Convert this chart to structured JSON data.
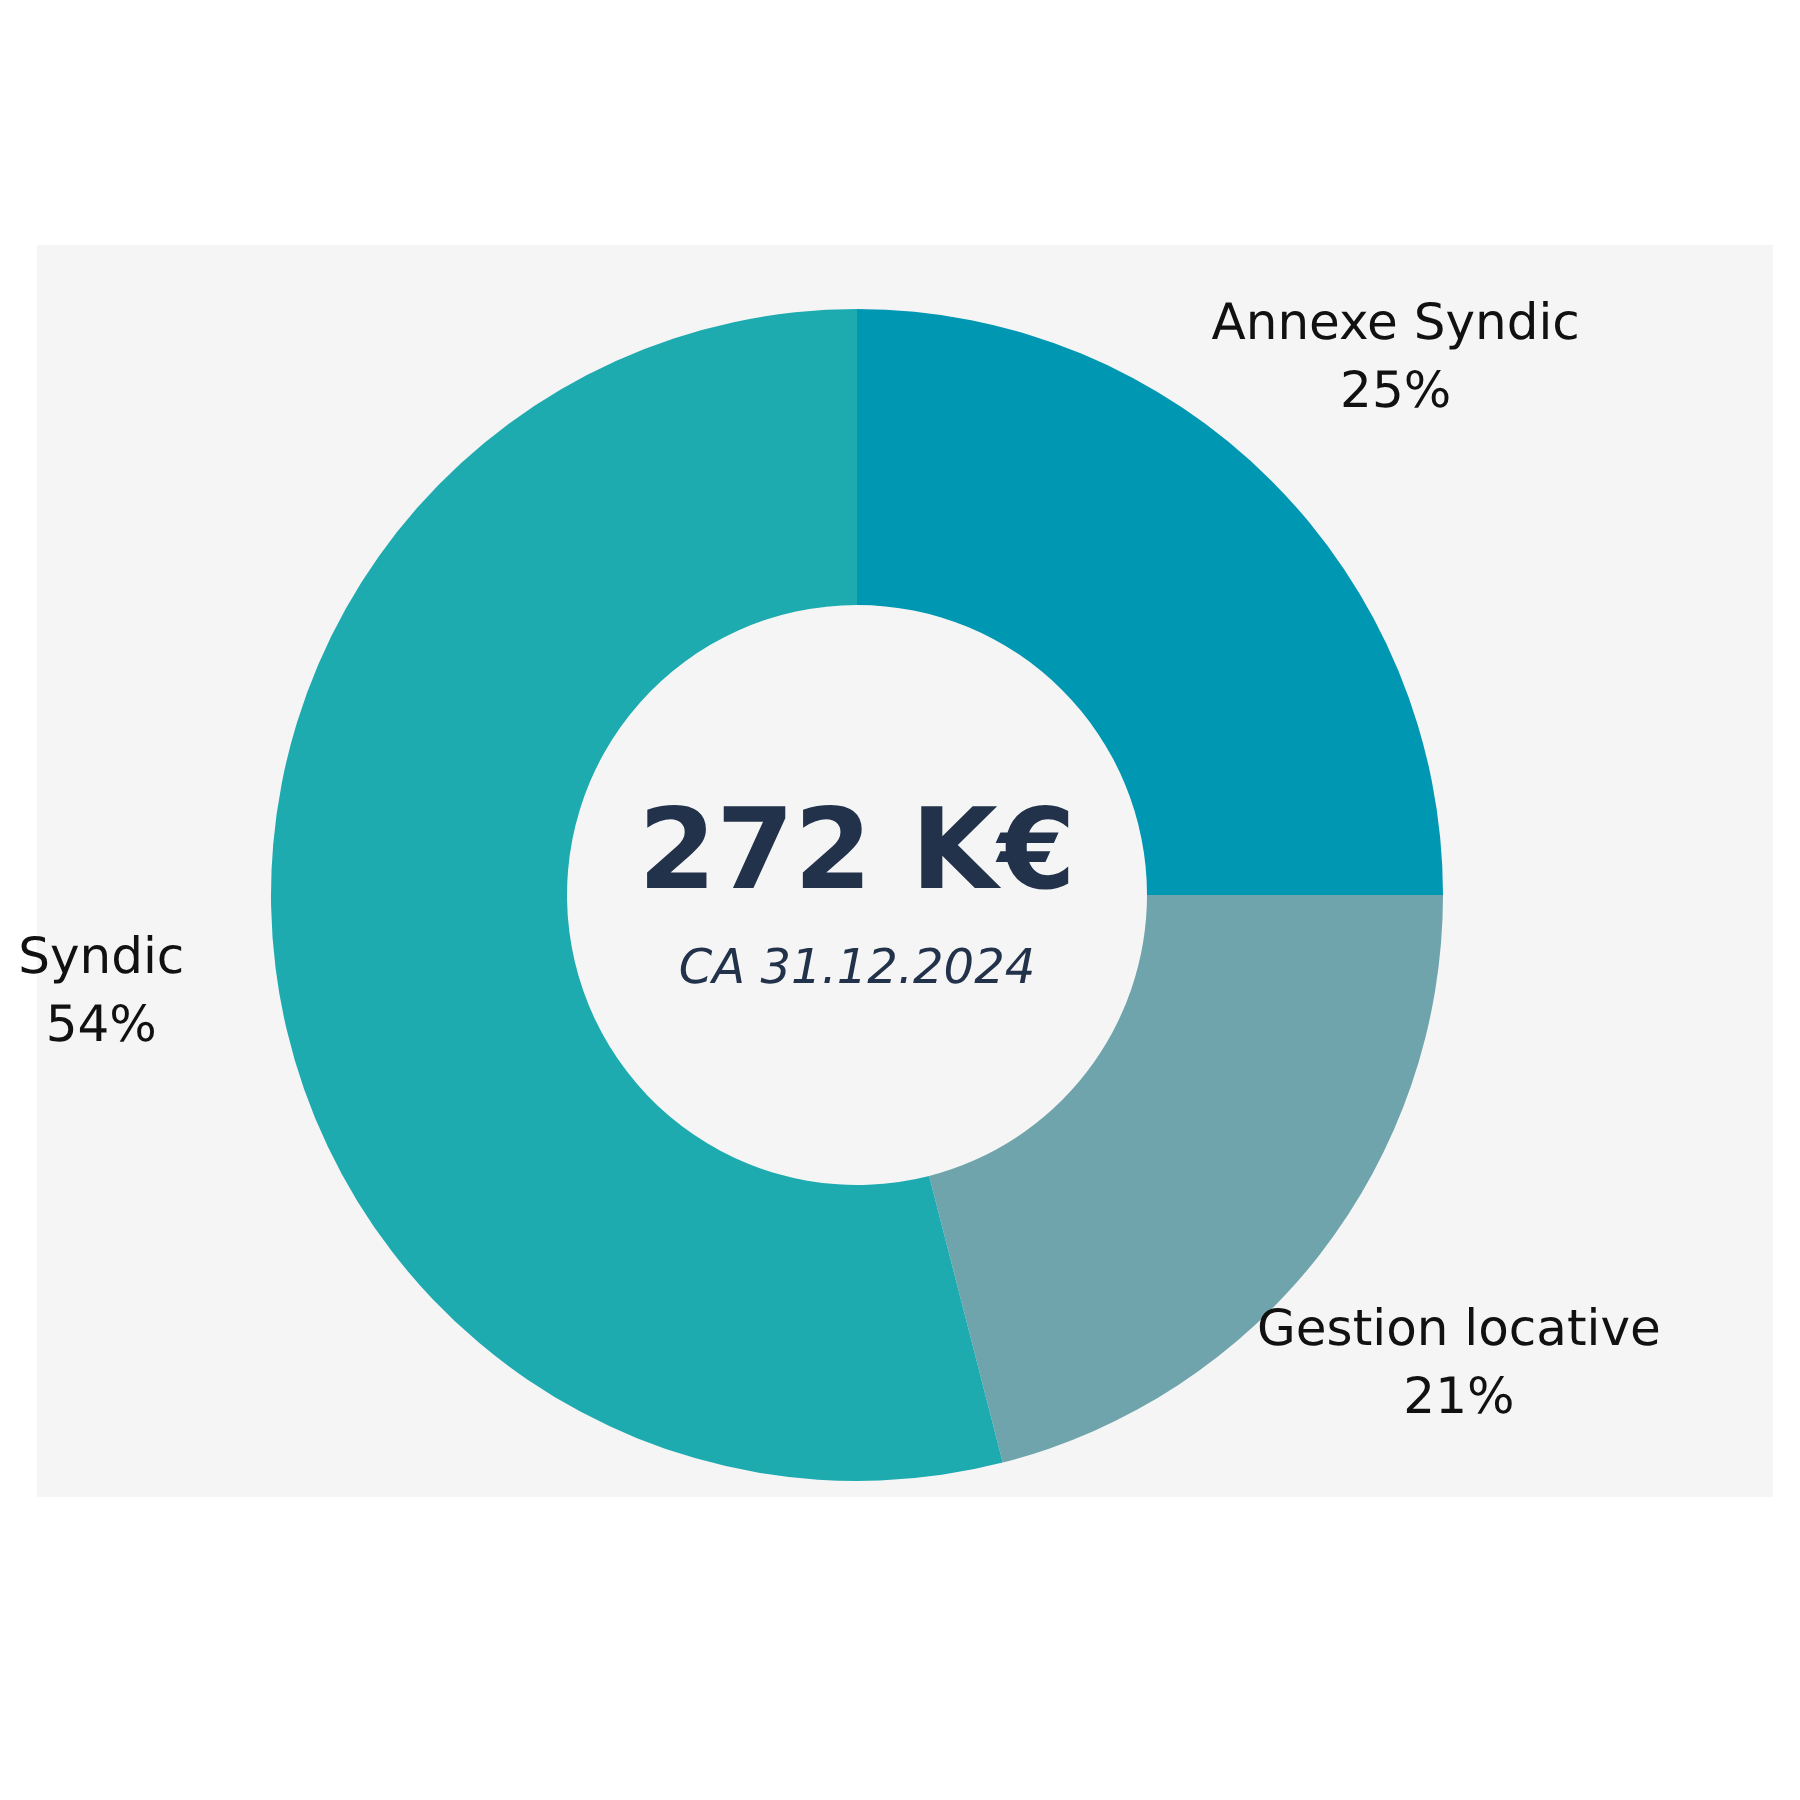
{
  "chart_data": {
    "type": "donut",
    "title": "272 K€",
    "subtitle": "CA 31.12.2024",
    "categories": [
      "Annexe Syndic",
      "Gestion locative",
      "Syndic"
    ],
    "values": [
      25,
      21,
      54
    ],
    "value_labels": [
      "25%",
      "21%",
      "54%"
    ],
    "colors": [
      "#0097b2",
      "#6fa4ac",
      "#1eabb0"
    ]
  }
}
